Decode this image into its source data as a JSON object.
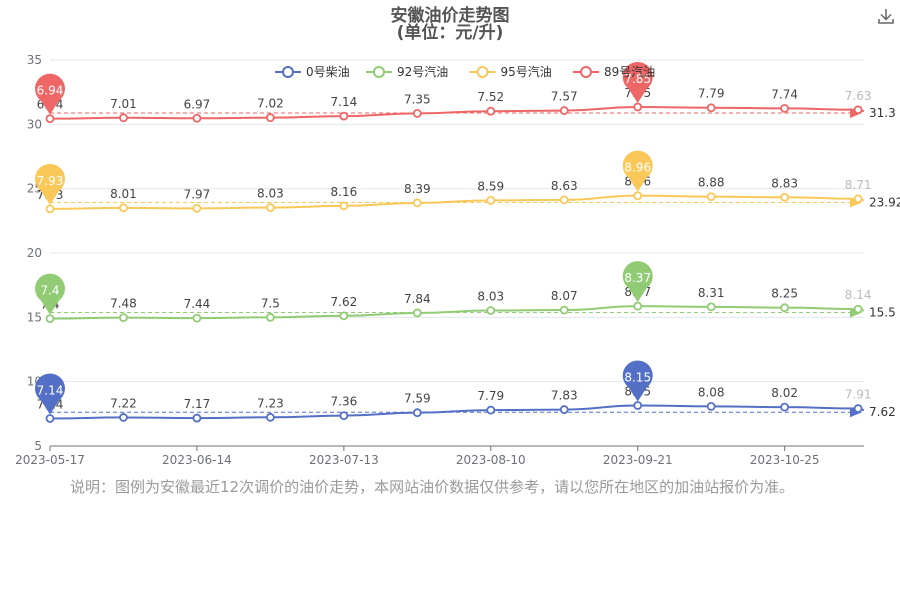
{
  "header": {
    "title": "安徽油价走势图",
    "subtitle": "(单位：元/升)"
  },
  "footer": {
    "note": "说明：图例为安徽最近12次调价的油价走势，本网站油价数据仅供参考，请以您所在地区的加油站报价为准。"
  },
  "toolbar": {
    "download_icon": "download-icon"
  },
  "chart_data": {
    "type": "line",
    "x_ticks": [
      "2023-05-17",
      "2023-06-14",
      "2023-07-13",
      "2023-08-10",
      "2023-09-21",
      "2023-10-25"
    ],
    "y_ticks": [
      "5",
      "10",
      "15",
      "20",
      "25",
      "30",
      "35"
    ],
    "ylim": [
      5,
      35
    ],
    "legend_position": "top",
    "series": [
      {
        "name": "0号柴油",
        "color": "#5470c6",
        "values": [
          7.14,
          7.22,
          7.17,
          7.23,
          7.36,
          7.59,
          7.79,
          7.83,
          8.15,
          8.08,
          8.02,
          7.91
        ],
        "max_label": "8.15",
        "min_label": "7.14",
        "avg_label": "7.62",
        "avg": 7.62
      },
      {
        "name": "92号汽油",
        "color": "#91cc75",
        "values": [
          7.4,
          7.48,
          7.44,
          7.5,
          7.62,
          7.84,
          8.03,
          8.07,
          8.37,
          8.31,
          8.25,
          8.14
        ],
        "max_label": "8.37",
        "min_label": "7.4",
        "avg_label": "15.5",
        "avg": 15.5
      },
      {
        "name": "95号汽油",
        "color": "#fac858",
        "values": [
          7.93,
          8.01,
          7.97,
          8.03,
          8.16,
          8.39,
          8.59,
          8.63,
          8.96,
          8.88,
          8.83,
          8.71
        ],
        "max_label": "8.96",
        "min_label": "7.93",
        "avg_label": "23.92",
        "avg": 23.92
      },
      {
        "name": "89号汽油",
        "color": "#ee6666",
        "values": [
          6.94,
          7.01,
          6.97,
          7.02,
          7.14,
          7.35,
          7.52,
          7.57,
          7.85,
          7.79,
          7.74,
          7.63
        ],
        "max_label": "7.85",
        "min_label": "6.94",
        "avg_label": "31.3",
        "avg": 31.3
      }
    ]
  }
}
